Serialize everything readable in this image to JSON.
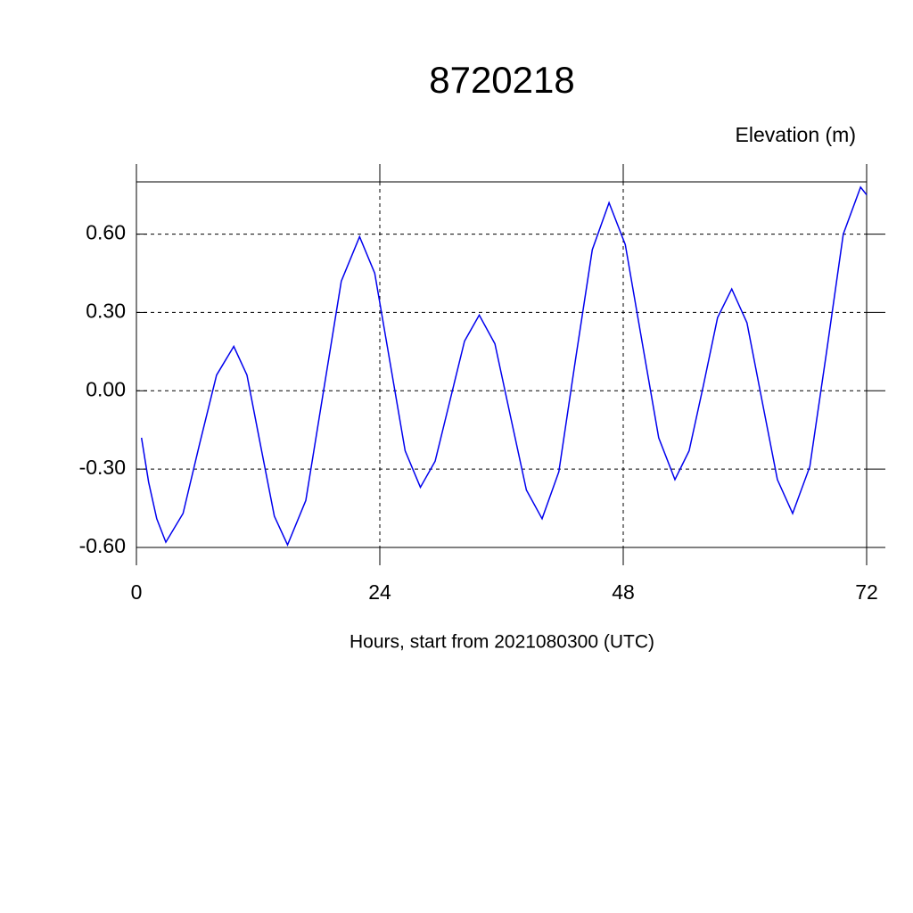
{
  "chart_data": {
    "type": "line",
    "title": "8720218",
    "y_label": "Elevation (m)",
    "x_label": "Hours, start from 2021080300 (UTC)",
    "x": [
      0.5,
      1.2,
      2.0,
      2.9,
      4.6,
      6.25,
      7.9,
      9.6,
      10.9,
      12.25,
      13.6,
      14.9,
      16.7,
      18.45,
      20.2,
      22.0,
      23.5,
      25.0,
      26.5,
      28.0,
      29.45,
      30.9,
      32.35,
      33.8,
      35.35,
      36.9,
      38.45,
      40.0,
      41.65,
      43.3,
      44.95,
      46.6,
      48.2,
      49.85,
      51.5,
      53.1,
      54.5,
      55.9,
      57.3,
      58.7,
      60.2,
      61.7,
      63.2,
      64.7,
      66.4,
      68.05,
      69.7,
      71.4,
      72.0
    ],
    "series": [
      {
        "name": "Elevation",
        "color": "#0000ee",
        "values": [
          -0.18,
          -0.35,
          -0.49,
          -0.58,
          -0.47,
          -0.2,
          0.06,
          0.17,
          0.06,
          -0.21,
          -0.48,
          -0.59,
          -0.42,
          0.0,
          0.42,
          0.59,
          0.45,
          0.11,
          -0.23,
          -0.37,
          -0.27,
          -0.04,
          0.19,
          0.29,
          0.18,
          -0.1,
          -0.38,
          -0.49,
          -0.31,
          0.12,
          0.54,
          0.72,
          0.56,
          0.19,
          -0.18,
          -0.34,
          -0.23,
          0.02,
          0.28,
          0.39,
          0.26,
          -0.04,
          -0.34,
          -0.47,
          -0.29,
          0.15,
          0.6,
          0.78,
          0.75
        ]
      }
    ],
    "xlim": [
      0,
      72
    ],
    "xticks": [
      0,
      24,
      48,
      72
    ],
    "ylim": [
      -0.6,
      0.8
    ],
    "yticks": [
      {
        "value": -0.6,
        "label": "-0.60"
      },
      {
        "value": -0.3,
        "label": "-0.30"
      },
      {
        "value": 0,
        "label": "0.00"
      },
      {
        "value": 0.3,
        "label": "0.30"
      },
      {
        "value": 0.6,
        "label": "0.60"
      }
    ],
    "grid": true
  }
}
